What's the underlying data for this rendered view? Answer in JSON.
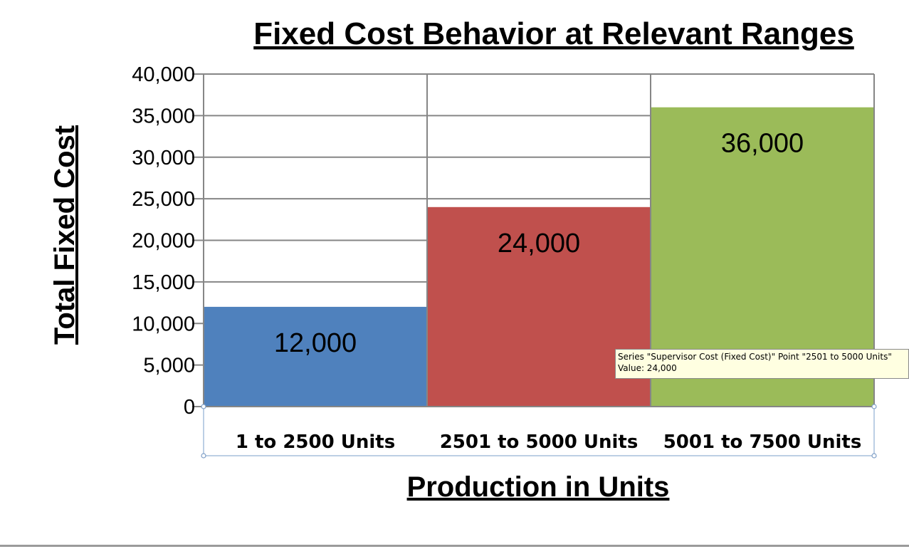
{
  "chart_data": {
    "type": "bar",
    "title": "Fixed Cost Behavior at Relevant Ranges",
    "xlabel": "Production in Units",
    "ylabel": "Total Fixed Cost",
    "categories": [
      "1 to 2500 Units",
      "2501 to 5000 Units",
      "5001 to 7500 Units"
    ],
    "values": [
      12000,
      24000,
      36000
    ],
    "data_labels": [
      "12,000",
      "24,000",
      "36,000"
    ],
    "colors": [
      "#4f81bd",
      "#c0504d",
      "#9bbb59"
    ],
    "ylim": [
      0,
      40000
    ],
    "yticks": [
      0,
      5000,
      10000,
      15000,
      20000,
      25000,
      30000,
      35000,
      40000
    ],
    "ytick_labels": [
      "0",
      "5,000",
      "10,000",
      "15,000",
      "20,000",
      "25,000",
      "30,000",
      "35,000",
      "40,000"
    ],
    "grid": true,
    "legend": "none"
  },
  "tooltip": {
    "line1": "Series \"Supervisor Cost (Fixed Cost)\" Point \"2501 to 5000 Units\"",
    "line2": "Value: 24,000"
  }
}
